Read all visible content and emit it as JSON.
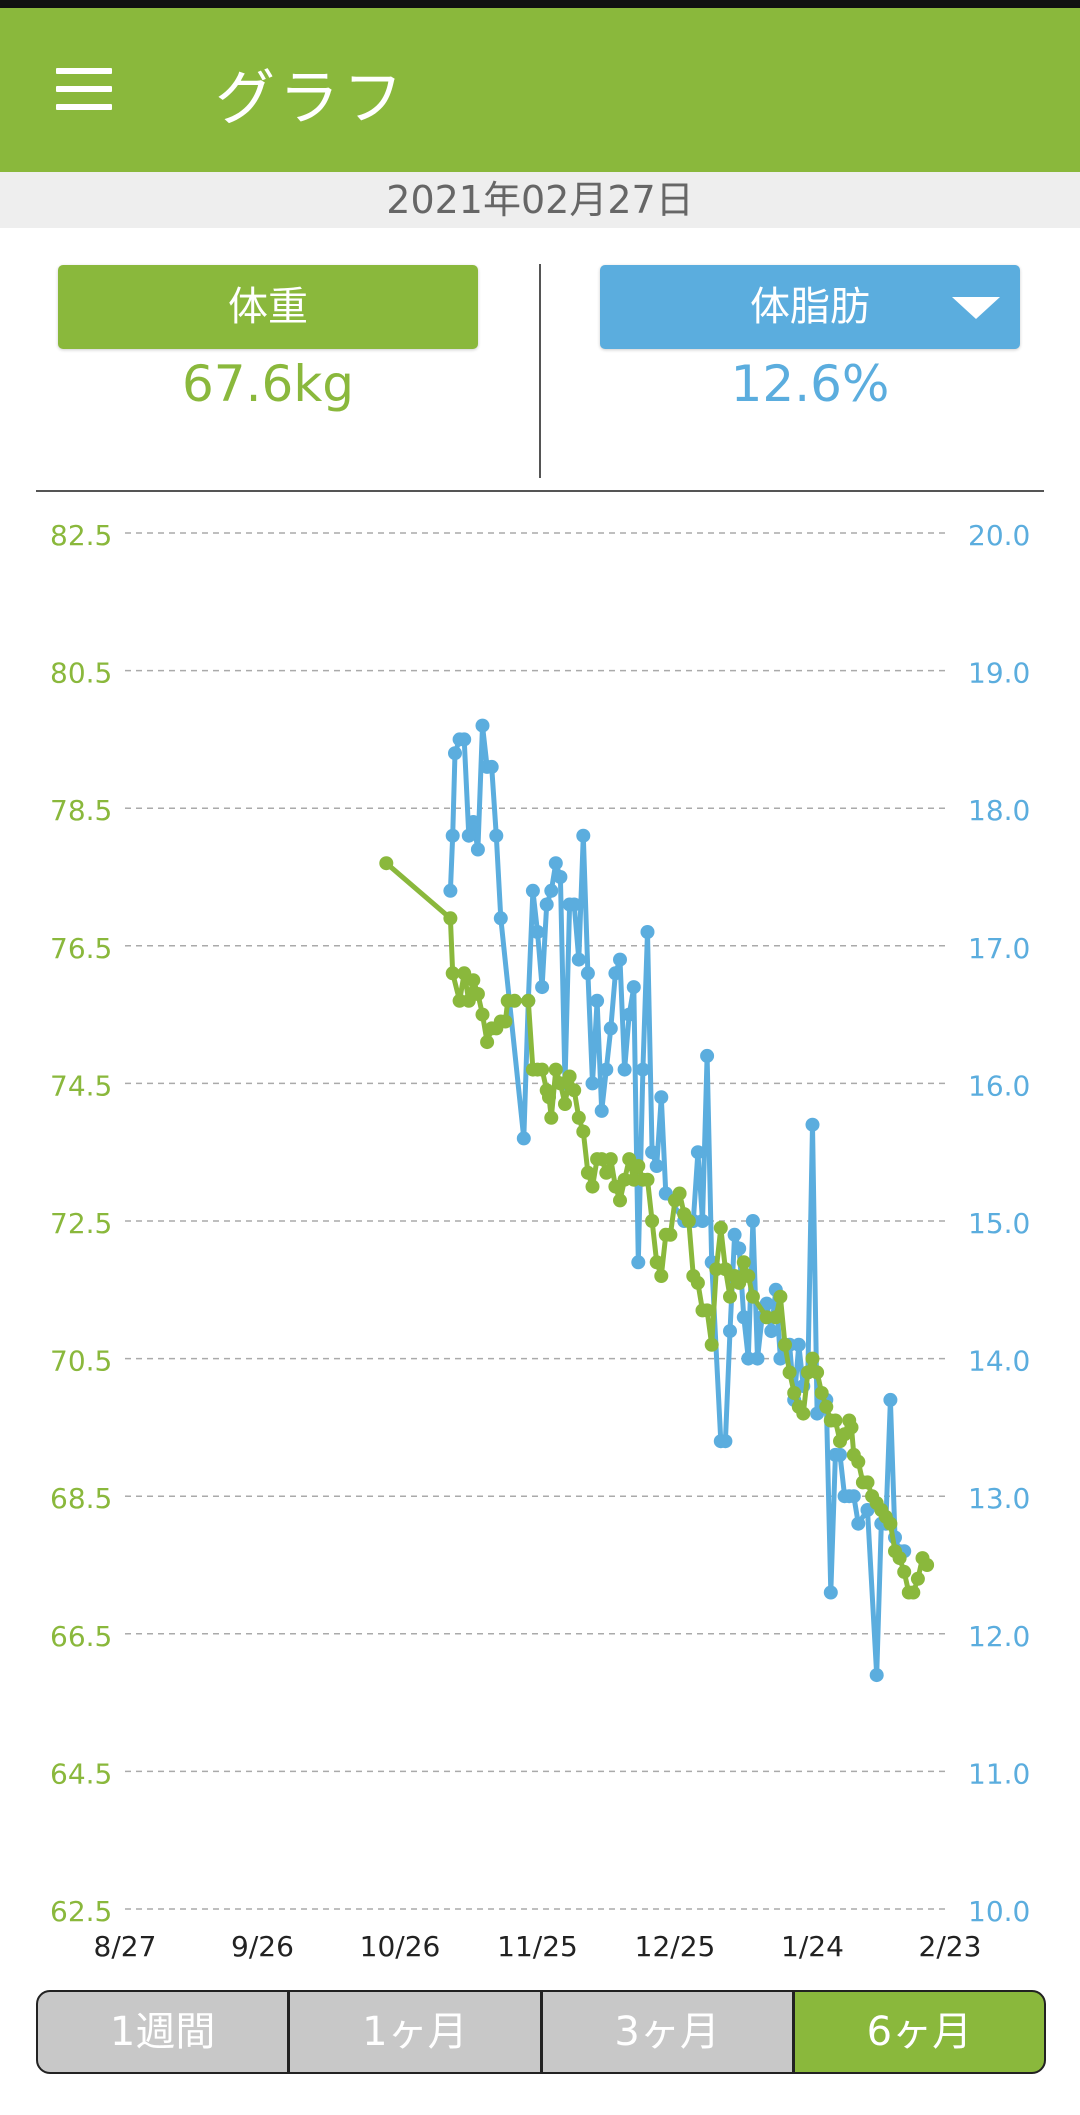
{
  "app": {
    "title": "グラフ"
  },
  "date": "2021年02月27日",
  "metrics": {
    "weight": {
      "label": "体重",
      "value": "67.6kg"
    },
    "fat": {
      "label": "体脂肪",
      "value": "12.6%"
    }
  },
  "colors": {
    "weight": "#8ab83c",
    "fat": "#5badde",
    "grid": "#aaaaaa"
  },
  "range": {
    "options": [
      "1週間",
      "1ヶ月",
      "3ヶ月",
      "6ヶ月"
    ],
    "selected": "6ヶ月"
  },
  "chart_data": {
    "type": "line",
    "title": "",
    "x_labels": [
      "8/27",
      "9/26",
      "10/26",
      "11/25",
      "12/25",
      "1/24",
      "2/23"
    ],
    "x_range_days": [
      0,
      180
    ],
    "y_left": {
      "label": "体重",
      "ticks": [
        "82.5",
        "80.5",
        "78.5",
        "76.5",
        "74.5",
        "72.5",
        "70.5",
        "68.5",
        "66.5",
        "64.5",
        "62.5"
      ],
      "min": 62.5,
      "max": 82.5
    },
    "y_right": {
      "label": "体脂肪",
      "ticks": [
        "20.0",
        "19.0",
        "18.0",
        "17.0",
        "16.0",
        "15.0",
        "14.0",
        "13.0",
        "12.0",
        "11.0",
        "10.0"
      ],
      "min": 10.0,
      "max": 20.0
    },
    "grid": true,
    "series": [
      {
        "name": "体重",
        "axis": "left",
        "points": [
          [
            57,
            77.7
          ],
          [
            71,
            76.9
          ],
          [
            71.5,
            76.1
          ],
          [
            73,
            75.7
          ],
          [
            74,
            76.1
          ],
          [
            75,
            75.7
          ],
          [
            76,
            76.0
          ],
          [
            77,
            75.8
          ],
          [
            78,
            75.5
          ],
          [
            79,
            75.1
          ],
          [
            80,
            75.3
          ],
          [
            81,
            75.3
          ],
          [
            82,
            75.4
          ],
          [
            83,
            75.4
          ],
          [
            83.5,
            75.7
          ],
          [
            85,
            75.7
          ],
          [
            88,
            75.7
          ],
          [
            89,
            74.7
          ],
          [
            90,
            74.7
          ],
          [
            91,
            74.7
          ],
          [
            92,
            74.4
          ],
          [
            92.5,
            74.3
          ],
          [
            93,
            74.0
          ],
          [
            94,
            74.7
          ],
          [
            95,
            74.5
          ],
          [
            96,
            74.2
          ],
          [
            97,
            74.6
          ],
          [
            98,
            74.4
          ],
          [
            99,
            74.0
          ],
          [
            100,
            73.8
          ],
          [
            101,
            73.2
          ],
          [
            102,
            73.0
          ],
          [
            103,
            73.4
          ],
          [
            104,
            73.4
          ],
          [
            105,
            73.2
          ],
          [
            106,
            73.4
          ],
          [
            107,
            73.0
          ],
          [
            108,
            72.8
          ],
          [
            109,
            73.1
          ],
          [
            110,
            73.4
          ],
          [
            111,
            73.1
          ],
          [
            112,
            73.3
          ],
          [
            113,
            73.1
          ],
          [
            114,
            73.1
          ],
          [
            115,
            72.5
          ],
          [
            116,
            71.9
          ],
          [
            117,
            71.7
          ],
          [
            118,
            72.3
          ],
          [
            119,
            72.3
          ],
          [
            120,
            72.8
          ],
          [
            121,
            72.9
          ],
          [
            122,
            72.6
          ],
          [
            123,
            72.5
          ],
          [
            124,
            71.7
          ],
          [
            125,
            71.6
          ],
          [
            126,
            71.2
          ],
          [
            127,
            71.2
          ],
          [
            128,
            70.7
          ],
          [
            129,
            71.8
          ],
          [
            130,
            72.4
          ],
          [
            131,
            71.8
          ],
          [
            132,
            71.4
          ],
          [
            133,
            71.7
          ],
          [
            134,
            71.6
          ],
          [
            135,
            71.9
          ],
          [
            136,
            71.7
          ],
          [
            137,
            71.4
          ],
          [
            140,
            71.1
          ],
          [
            142,
            71.1
          ],
          [
            143,
            71.4
          ],
          [
            144,
            70.7
          ],
          [
            145,
            70.3
          ],
          [
            146,
            70.0
          ],
          [
            147,
            69.8
          ],
          [
            148,
            69.7
          ],
          [
            149,
            70.3
          ],
          [
            150,
            70.5
          ],
          [
            151,
            70.3
          ],
          [
            152,
            70.0
          ],
          [
            153,
            69.8
          ],
          [
            154,
            69.6
          ],
          [
            155,
            69.6
          ],
          [
            156,
            69.3
          ],
          [
            157,
            69.4
          ],
          [
            158,
            69.6
          ],
          [
            158.5,
            69.5
          ],
          [
            159,
            69.1
          ],
          [
            160,
            69.0
          ],
          [
            161,
            68.7
          ],
          [
            162,
            68.7
          ],
          [
            163,
            68.5
          ],
          [
            164,
            68.4
          ],
          [
            165,
            68.3
          ],
          [
            166,
            68.2
          ],
          [
            167,
            68.1
          ],
          [
            168,
            67.7
          ],
          [
            169,
            67.6
          ],
          [
            170,
            67.4
          ],
          [
            171,
            67.1
          ],
          [
            172,
            67.1
          ],
          [
            173,
            67.3
          ],
          [
            174,
            67.6
          ],
          [
            175,
            67.5
          ]
        ]
      },
      {
        "name": "体脂肪",
        "axis": "right",
        "points": [
          [
            71,
            17.4
          ],
          [
            71.5,
            17.8
          ],
          [
            72,
            18.4
          ],
          [
            73,
            18.5
          ],
          [
            74,
            18.5
          ],
          [
            75,
            17.8
          ],
          [
            76,
            17.9
          ],
          [
            77,
            17.7
          ],
          [
            78,
            18.6
          ],
          [
            79,
            18.3
          ],
          [
            80,
            18.3
          ],
          [
            81,
            17.8
          ],
          [
            82,
            17.2
          ],
          [
            87,
            15.6
          ],
          [
            88,
            16.6
          ],
          [
            89,
            17.4
          ],
          [
            90,
            17.1
          ],
          [
            91,
            16.7
          ],
          [
            92,
            17.3
          ],
          [
            93,
            17.4
          ],
          [
            94,
            17.6
          ],
          [
            95,
            17.5
          ],
          [
            96,
            16.0
          ],
          [
            97,
            17.3
          ],
          [
            98,
            17.3
          ],
          [
            99,
            16.9
          ],
          [
            100,
            17.8
          ],
          [
            101,
            16.8
          ],
          [
            102,
            16.0
          ],
          [
            103,
            16.6
          ],
          [
            104,
            15.8
          ],
          [
            105,
            16.1
          ],
          [
            106,
            16.4
          ],
          [
            107,
            16.8
          ],
          [
            108,
            16.9
          ],
          [
            109,
            16.1
          ],
          [
            110,
            16.5
          ],
          [
            111,
            16.7
          ],
          [
            112,
            14.7
          ],
          [
            113,
            16.1
          ],
          [
            114,
            17.1
          ],
          [
            115,
            15.5
          ],
          [
            116,
            15.4
          ],
          [
            117,
            15.9
          ],
          [
            118,
            15.2
          ],
          [
            122,
            15.0
          ],
          [
            124,
            15.0
          ],
          [
            125,
            15.5
          ],
          [
            126,
            15.0
          ],
          [
            127,
            16.2
          ],
          [
            128,
            14.7
          ],
          [
            130,
            13.4
          ],
          [
            131,
            13.4
          ],
          [
            132,
            14.2
          ],
          [
            133,
            14.9
          ],
          [
            134,
            14.8
          ],
          [
            135,
            14.3
          ],
          [
            136,
            14.0
          ],
          [
            137,
            15.0
          ],
          [
            138,
            14.0
          ],
          [
            139,
            14.3
          ],
          [
            140,
            14.4
          ],
          [
            141,
            14.2
          ],
          [
            142,
            14.5
          ],
          [
            143,
            14.0
          ],
          [
            144,
            14.1
          ],
          [
            145,
            14.1
          ],
          [
            146,
            13.7
          ],
          [
            147,
            14.1
          ],
          [
            148,
            13.8
          ],
          [
            149,
            13.9
          ],
          [
            150,
            15.7
          ],
          [
            151,
            13.6
          ],
          [
            152,
            13.7
          ],
          [
            153,
            13.7
          ],
          [
            154,
            12.3
          ],
          [
            155,
            13.3
          ],
          [
            156,
            13.3
          ],
          [
            157,
            13.0
          ],
          [
            158,
            13.0
          ],
          [
            159,
            13.0
          ],
          [
            160,
            12.8
          ],
          [
            162,
            12.9
          ],
          [
            164,
            11.7
          ],
          [
            165,
            12.8
          ],
          [
            166,
            12.8
          ],
          [
            167,
            13.7
          ],
          [
            168,
            12.7
          ],
          [
            169,
            12.6
          ],
          [
            170,
            12.6
          ]
        ]
      }
    ]
  }
}
